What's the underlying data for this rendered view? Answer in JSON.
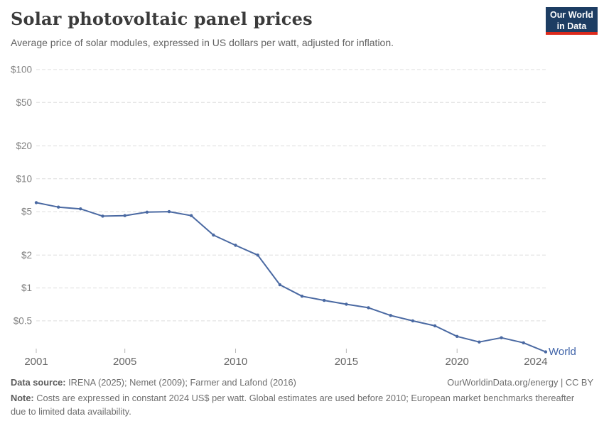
{
  "header": {
    "title": "Solar photovoltaic panel prices",
    "subtitle": "Average price of solar modules, expressed in US dollars per watt, adjusted for inflation.",
    "logo": {
      "line1": "Our World",
      "line2": "in Data"
    }
  },
  "chart_data": {
    "type": "line",
    "title": "Solar photovoltaic panel prices",
    "y_scale": "log",
    "grid": "dashed-horizontal",
    "ylim": [
      0.5,
      100
    ],
    "x": [
      2001,
      2002,
      2003,
      2004,
      2005,
      2006,
      2007,
      2008,
      2009,
      2010,
      2011,
      2012,
      2013,
      2014,
      2015,
      2016,
      2017,
      2018,
      2019,
      2020,
      2021,
      2022,
      2023,
      2024
    ],
    "series": [
      {
        "name": "World",
        "values": [
          6.05,
          5.5,
          5.3,
          4.55,
          4.6,
          4.95,
          5.0,
          4.6,
          3.05,
          2.46,
          2.0,
          1.07,
          0.84,
          0.77,
          0.71,
          0.66,
          0.56,
          0.5,
          0.45,
          0.36,
          0.32,
          0.35,
          0.315,
          0.26
        ]
      }
    ],
    "y_ticks": [
      100,
      50,
      20,
      10,
      5,
      2,
      1,
      0.5
    ],
    "y_tick_labels": [
      "$100",
      "$50",
      "$20",
      "$10",
      "$5",
      "$2",
      "$1",
      "$0.5"
    ],
    "x_ticks": [
      2001,
      2005,
      2010,
      2015,
      2020,
      2024
    ],
    "x_tick_labels": [
      "2001",
      "2005",
      "2010",
      "2015",
      "2020",
      "2024"
    ],
    "end_label": "World"
  },
  "colors": {
    "line": "#4a69a2",
    "end_label": "#3f63a8",
    "gridline": "#dddddd",
    "tick_mark": "#b8b8b8",
    "y_label": "#818181",
    "x_label": "#666666",
    "logo_bg": "#1d3d63",
    "logo_red": "#dc2a1c"
  },
  "footer": {
    "data_source_label": "Data source:",
    "data_source": " IRENA (2025); Nemet (2009); Farmer and Lafond (2016)",
    "attribution": "OurWorldinData.org/energy | CC BY",
    "note_label": "Note:",
    "note": " Costs are expressed in constant 2024 US$ per watt. Global estimates are used before 2010; European market benchmarks thereafter due to limited data availability."
  }
}
